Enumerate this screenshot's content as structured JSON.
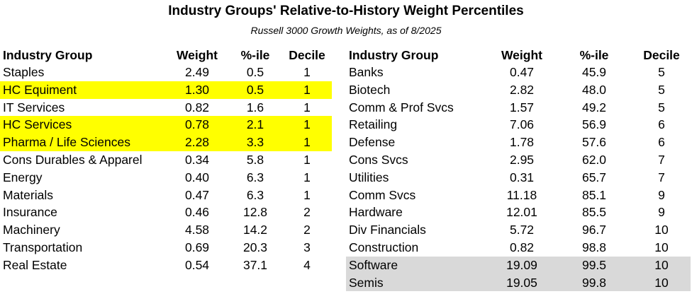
{
  "title": "Industry Groups' Relative-to-History Weight Percentiles",
  "subtitle": "Russell 3000 Growth Weights, as of 8/2025",
  "columns": [
    "Industry Group",
    "Weight",
    "%-ile",
    "Decile"
  ],
  "colors": {
    "highlight_yellow": "#ffff00",
    "highlight_gray": "#d9d9d9"
  },
  "left_table": [
    {
      "group": "Staples",
      "weight": "2.49",
      "pctile": "0.5",
      "decile": "1",
      "highlight": ""
    },
    {
      "group": "HC Equiment",
      "weight": "1.30",
      "pctile": "0.5",
      "decile": "1",
      "highlight": "yellow"
    },
    {
      "group": "IT Services",
      "weight": "0.82",
      "pctile": "1.6",
      "decile": "1",
      "highlight": ""
    },
    {
      "group": "HC Services",
      "weight": "0.78",
      "pctile": "2.1",
      "decile": "1",
      "highlight": "yellow"
    },
    {
      "group": "Pharma / Life Sciences",
      "weight": "2.28",
      "pctile": "3.3",
      "decile": "1",
      "highlight": "yellow"
    },
    {
      "group": "Cons Durables & Apparel",
      "weight": "0.34",
      "pctile": "5.8",
      "decile": "1",
      "highlight": ""
    },
    {
      "group": "Energy",
      "weight": "0.40",
      "pctile": "6.3",
      "decile": "1",
      "highlight": ""
    },
    {
      "group": "Materials",
      "weight": "0.47",
      "pctile": "6.3",
      "decile": "1",
      "highlight": ""
    },
    {
      "group": "Insurance",
      "weight": "0.46",
      "pctile": "12.8",
      "decile": "2",
      "highlight": ""
    },
    {
      "group": "Machinery",
      "weight": "4.58",
      "pctile": "14.2",
      "decile": "2",
      "highlight": ""
    },
    {
      "group": "Transportation",
      "weight": "0.69",
      "pctile": "20.3",
      "decile": "3",
      "highlight": ""
    },
    {
      "group": "Real Estate",
      "weight": "0.54",
      "pctile": "37.1",
      "decile": "4",
      "highlight": ""
    }
  ],
  "right_table": [
    {
      "group": "Banks",
      "weight": "0.47",
      "pctile": "45.9",
      "decile": "5",
      "highlight": ""
    },
    {
      "group": "Biotech",
      "weight": "2.82",
      "pctile": "48.0",
      "decile": "5",
      "highlight": ""
    },
    {
      "group": "Comm & Prof Svcs",
      "weight": "1.57",
      "pctile": "49.2",
      "decile": "5",
      "highlight": ""
    },
    {
      "group": "Retailing",
      "weight": "7.06",
      "pctile": "56.9",
      "decile": "6",
      "highlight": ""
    },
    {
      "group": "Defense",
      "weight": "1.78",
      "pctile": "57.6",
      "decile": "6",
      "highlight": ""
    },
    {
      "group": "Cons Svcs",
      "weight": "2.95",
      "pctile": "62.0",
      "decile": "7",
      "highlight": ""
    },
    {
      "group": "Utilities",
      "weight": "0.31",
      "pctile": "65.7",
      "decile": "7",
      "highlight": ""
    },
    {
      "group": "Comm Svcs",
      "weight": "11.18",
      "pctile": "85.1",
      "decile": "9",
      "highlight": ""
    },
    {
      "group": "Hardware",
      "weight": "12.01",
      "pctile": "85.5",
      "decile": "9",
      "highlight": ""
    },
    {
      "group": "Div Financials",
      "weight": "5.72",
      "pctile": "96.7",
      "decile": "10",
      "highlight": ""
    },
    {
      "group": "Construction",
      "weight": "0.82",
      "pctile": "98.8",
      "decile": "10",
      "highlight": ""
    },
    {
      "group": "Software",
      "weight": "19.09",
      "pctile": "99.5",
      "decile": "10",
      "highlight": "gray"
    },
    {
      "group": "Semis",
      "weight": "19.05",
      "pctile": "99.8",
      "decile": "10",
      "highlight": "gray"
    }
  ]
}
